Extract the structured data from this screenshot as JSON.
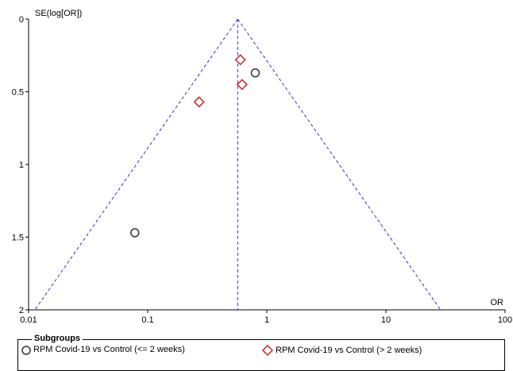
{
  "chart_data": {
    "type": "scatter",
    "title": "",
    "xlabel": "OR",
    "ylabel": "SE(log[OR])",
    "x_scale": "log",
    "xlim": [
      0.01,
      100
    ],
    "ylim": [
      0,
      2
    ],
    "y_inverted": true,
    "x_ticks": [
      {
        "value": 0.01,
        "label": "0.01"
      },
      {
        "value": 0.1,
        "label": "0.1"
      },
      {
        "value": 1,
        "label": "1"
      },
      {
        "value": 10,
        "label": "10"
      },
      {
        "value": 100,
        "label": "100"
      }
    ],
    "y_ticks": [
      {
        "value": 0,
        "label": "0"
      },
      {
        "value": 0.5,
        "label": "0.5"
      },
      {
        "value": 1,
        "label": "1"
      },
      {
        "value": 1.5,
        "label": "1.5"
      },
      {
        "value": 2,
        "label": "2"
      }
    ],
    "pooled_or": 0.57,
    "funnel_color": "#3333cc",
    "series": [
      {
        "name": "RPM Covid-19 vs Control (<= 2 weeks)",
        "marker": "circle",
        "color": "#333333",
        "points": [
          {
            "x": 0.8,
            "y": 0.37
          },
          {
            "x": 0.078,
            "y": 1.47
          }
        ]
      },
      {
        "name": "RPM Covid-19 vs Control (> 2 weeks)",
        "marker": "diamond",
        "color": "#cc2222",
        "points": [
          {
            "x": 0.6,
            "y": 0.28
          },
          {
            "x": 0.62,
            "y": 0.45
          },
          {
            "x": 0.27,
            "y": 0.57
          }
        ]
      }
    ],
    "legend": {
      "title": "Subgroups",
      "position": "bottom"
    }
  }
}
